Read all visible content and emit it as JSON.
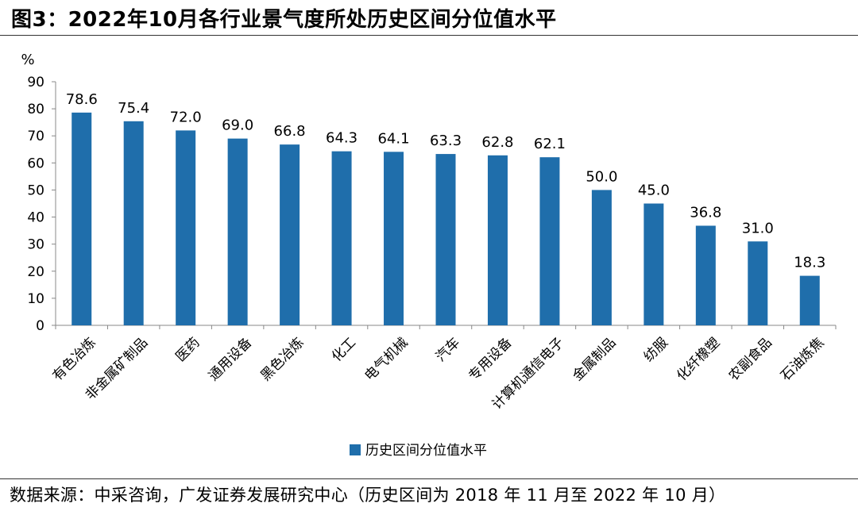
{
  "header": {
    "title": "图3：2022年10月各行业景气度所处历史区间分位值水平"
  },
  "footer": {
    "source": "数据来源：中采咨询，广发证券发展研究中心（历史区间为 2018 年 11 月至 2022 年 10 月）"
  },
  "colors": {
    "bar": "#1f6eab",
    "axis": "#888888"
  },
  "chart_data": {
    "type": "bar",
    "title": "",
    "ylabel": "%",
    "xlabel": "",
    "ylim": [
      0,
      90
    ],
    "yticks": [
      0,
      10,
      20,
      30,
      40,
      50,
      60,
      70,
      80,
      90
    ],
    "grid": false,
    "legend_position": "bottom-center",
    "categories": [
      "有色冶炼",
      "非金属矿制品",
      "医药",
      "通用设备",
      "黑色冶炼",
      "化工",
      "电气机械",
      "汽车",
      "专用设备",
      "计算机通信电子",
      "金属制品",
      "纺服",
      "化纤橡塑",
      "农副食品",
      "石油炼焦"
    ],
    "series": [
      {
        "name": "历史区间分位值水平",
        "values": [
          78.6,
          75.4,
          72.0,
          69.0,
          66.8,
          64.3,
          64.1,
          63.3,
          62.8,
          62.1,
          50.0,
          45.0,
          36.8,
          31.0,
          18.3
        ],
        "labels": [
          "78.6",
          "75.4",
          "72.0",
          "69.0",
          "66.8",
          "64.3",
          "64.1",
          "63.3",
          "62.8",
          "62.1",
          "50.0",
          "45.0",
          "36.8",
          "31.0",
          "18.3"
        ]
      }
    ]
  }
}
